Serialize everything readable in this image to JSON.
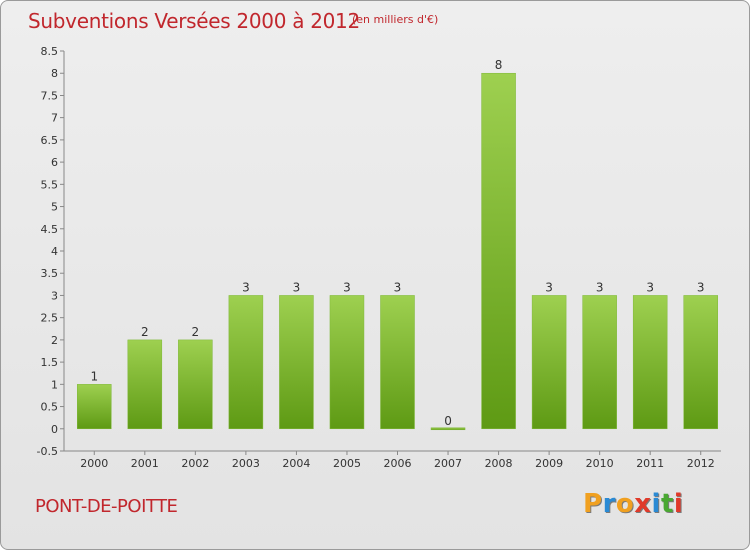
{
  "header": {
    "title": "Subventions Versées 2000 à 2012",
    "unit": "(en milliers d'€)"
  },
  "footer": {
    "commune": "PONT-DE-POITTE",
    "logo_letters": [
      "P",
      "r",
      "o",
      "x",
      "i",
      "t",
      "i"
    ],
    "logo_colors": [
      "#f0a020",
      "#2a8ad4",
      "#f0a020",
      "#e03a2a",
      "#2a8ad4",
      "#4aa832",
      "#e03a2a"
    ]
  },
  "colors": {
    "bar_top": "#9ed050",
    "bar_bottom": "#5e9a14",
    "title": "#c1272d"
  },
  "chart_data": {
    "type": "bar",
    "categories": [
      "2000",
      "2001",
      "2002",
      "2003",
      "2004",
      "2005",
      "2006",
      "2007",
      "2008",
      "2009",
      "2010",
      "2011",
      "2012"
    ],
    "values": [
      1,
      2,
      2,
      3,
      3,
      3,
      3,
      0,
      8,
      3,
      3,
      3,
      3
    ],
    "data_labels": [
      "1",
      "2",
      "2",
      "3",
      "3",
      "3",
      "3",
      "0",
      "8",
      "3",
      "3",
      "3",
      "3"
    ],
    "ylim": [
      -0.5,
      8.5
    ],
    "yticks": [
      "-0.5",
      "0",
      "0.5",
      "1",
      "1.5",
      "2",
      "2.5",
      "3",
      "3.5",
      "4",
      "4.5",
      "5",
      "5.5",
      "6",
      "6.5",
      "7",
      "7.5",
      "8",
      "8.5"
    ],
    "grid": false,
    "xlabel": "",
    "ylabel": ""
  }
}
